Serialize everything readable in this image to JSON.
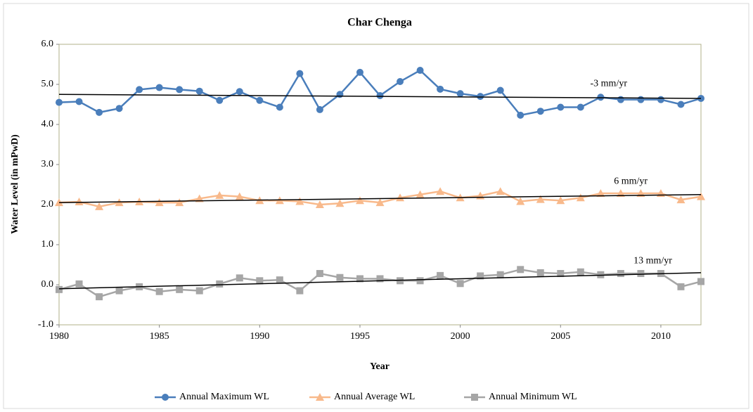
{
  "chart_data": {
    "type": "line",
    "title": "Char Chenga",
    "x_label": "Year",
    "y_label": "Water Level (in mPwD)",
    "x": [
      1980,
      1981,
      1982,
      1983,
      1984,
      1985,
      1986,
      1987,
      1988,
      1989,
      1990,
      1991,
      1992,
      1993,
      1994,
      1995,
      1996,
      1997,
      1998,
      1999,
      2000,
      2001,
      2002,
      2003,
      2004,
      2005,
      2006,
      2007,
      2008,
      2009,
      2010,
      2011,
      2012
    ],
    "series": [
      {
        "name": "Annual Maximum WL",
        "color": "#4a7ebb",
        "marker": "circle",
        "values": [
          4.55,
          4.57,
          4.3,
          4.4,
          4.87,
          4.92,
          4.87,
          4.83,
          4.6,
          4.82,
          4.6,
          4.43,
          5.27,
          4.37,
          4.75,
          5.3,
          4.72,
          5.07,
          5.35,
          4.88,
          4.77,
          4.7,
          4.85,
          4.23,
          4.33,
          4.43,
          4.43,
          4.68,
          4.62,
          4.62,
          4.62,
          4.5,
          4.65
        ]
      },
      {
        "name": "Annual Average WL",
        "color": "#f8b98b",
        "marker": "triangle",
        "values": [
          2.05,
          2.07,
          1.95,
          2.05,
          2.07,
          2.05,
          2.05,
          2.15,
          2.23,
          2.2,
          2.1,
          2.1,
          2.08,
          2.0,
          2.03,
          2.1,
          2.05,
          2.17,
          2.25,
          2.33,
          2.17,
          2.22,
          2.33,
          2.08,
          2.13,
          2.1,
          2.17,
          2.28,
          2.28,
          2.28,
          2.28,
          2.12,
          2.2
        ]
      },
      {
        "name": "Annual Minimum  WL",
        "color": "#a6a6a6",
        "marker": "square",
        "values": [
          -0.12,
          0.02,
          -0.3,
          -0.15,
          -0.05,
          -0.17,
          -0.12,
          -0.15,
          0.02,
          0.17,
          0.1,
          0.12,
          -0.15,
          0.28,
          0.18,
          0.15,
          0.15,
          0.1,
          0.1,
          0.23,
          0.03,
          0.22,
          0.25,
          0.38,
          0.3,
          0.28,
          0.32,
          0.25,
          0.28,
          0.28,
          0.28,
          -0.05,
          0.08
        ]
      }
    ],
    "trendlines": [
      {
        "label": "-3 mm/yr",
        "color": "#000000",
        "x": [
          1980,
          2012
        ],
        "values": [
          4.75,
          4.65
        ]
      },
      {
        "label": "6 mm/yr",
        "color": "#000000",
        "x": [
          1980,
          2012
        ],
        "values": [
          2.05,
          2.25
        ]
      },
      {
        "label": "13 mm/yr",
        "color": "#000000",
        "x": [
          1980,
          2012
        ],
        "values": [
          -0.1,
          0.3
        ]
      }
    ],
    "xlim": [
      1980,
      2012
    ],
    "xticks": [
      1980,
      1985,
      1990,
      1995,
      2000,
      2005,
      2010
    ],
    "ylim": [
      -1,
      6
    ],
    "yticks": [
      {
        "value": -1,
        "label": "-1.0"
      },
      {
        "value": 0,
        "label": "0.0"
      },
      {
        "value": 1,
        "label": "1.0"
      },
      {
        "value": 2,
        "label": "2.0"
      },
      {
        "value": 3,
        "label": "3.0"
      },
      {
        "value": 4,
        "label": "4.0"
      },
      {
        "value": 5,
        "label": "5.0"
      },
      {
        "value": 6,
        "label": "6.0"
      }
    ],
    "grid": false,
    "legend": "bottom"
  }
}
